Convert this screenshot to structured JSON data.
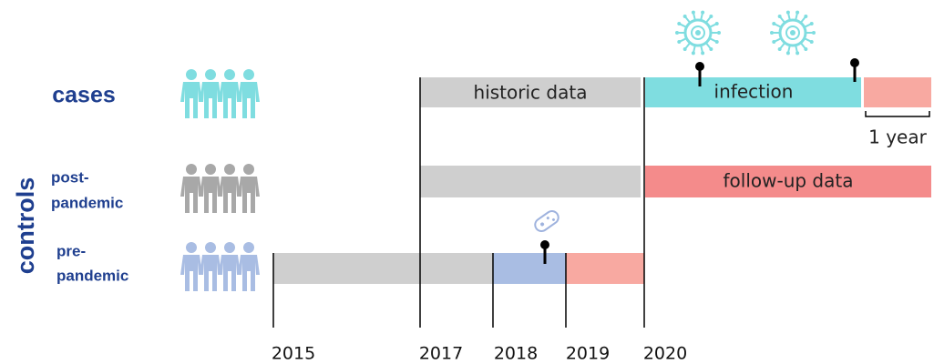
{
  "groups": {
    "cases": "cases",
    "controls": "controls",
    "post_pandemic": [
      "post-",
      "pandemic"
    ],
    "pre_pandemic": [
      "pre-",
      "pandemic"
    ]
  },
  "bars": {
    "historic": "historic data",
    "infection": "infection",
    "follow_up": "follow-up data",
    "one_year": "1 year"
  },
  "timeline": {
    "years": [
      "2015",
      "2017",
      "2018",
      "2019",
      "2020"
    ]
  }
}
